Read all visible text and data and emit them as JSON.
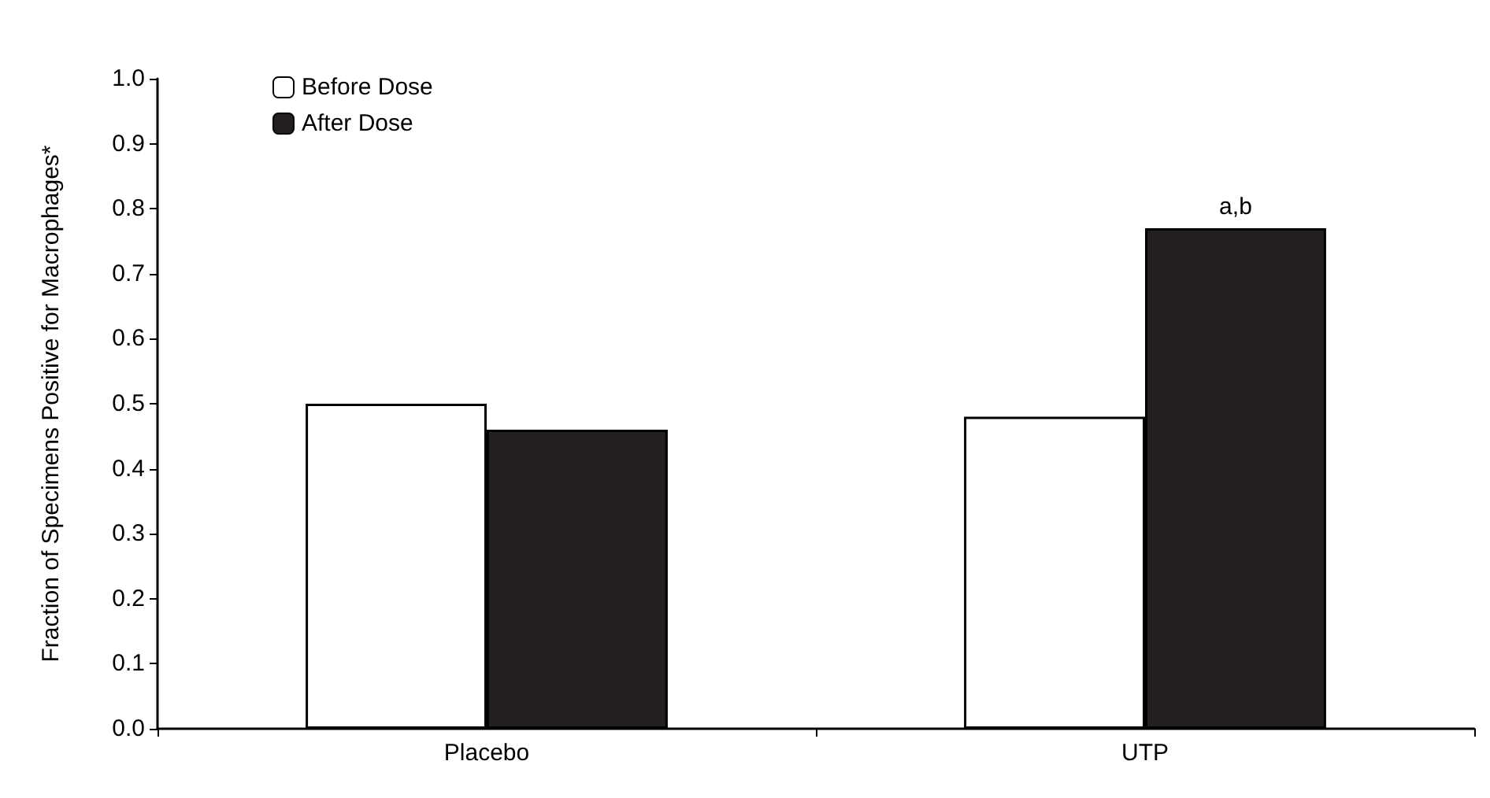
{
  "chart_data": {
    "type": "bar",
    "ylabel": "Fraction of Specimens Positive for Macrophages*",
    "categories": [
      "Placebo",
      "UTP"
    ],
    "series": [
      {
        "name": "Before Dose",
        "color": "#ffffff",
        "values": [
          0.5,
          0.48
        ]
      },
      {
        "name": "After Dose",
        "color": "#231f20",
        "values": [
          0.46,
          0.77
        ]
      }
    ],
    "ylim": [
      0,
      1
    ],
    "yticks": [
      {
        "value": 0,
        "label": "0.0"
      },
      {
        "value": 0.1,
        "label": "0.1"
      },
      {
        "value": 0.2,
        "label": "0.2"
      },
      {
        "value": 0.3,
        "label": "0.3"
      },
      {
        "value": 0.4,
        "label": "0.4"
      },
      {
        "value": 0.5,
        "label": "0.5"
      },
      {
        "value": 0.6,
        "label": "0.6"
      },
      {
        "value": 0.7,
        "label": "0.7"
      },
      {
        "value": 0.8,
        "label": "0.8"
      },
      {
        "value": 0.9,
        "label": "0.9"
      },
      {
        "value": 1,
        "label": "1.0"
      }
    ],
    "annotations": [
      "a,b"
    ],
    "grid": false,
    "legend": "top left"
  }
}
